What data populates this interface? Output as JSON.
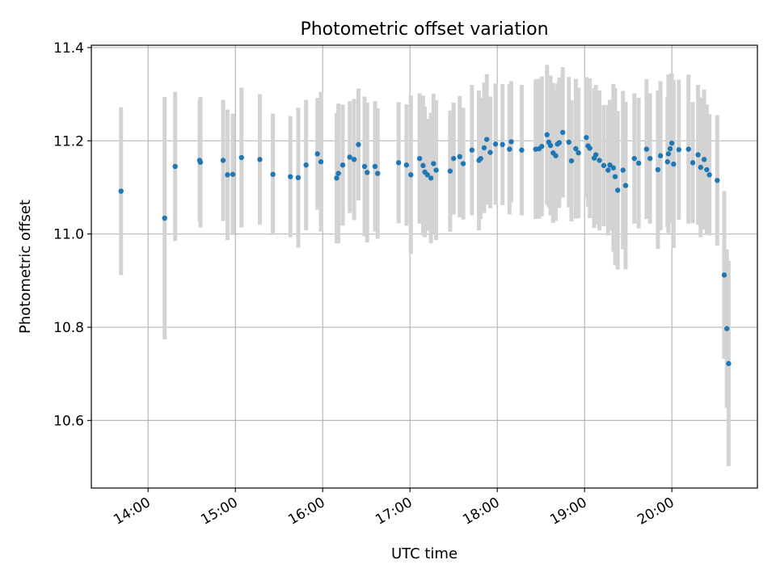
{
  "chart_data": {
    "type": "scatter",
    "title": "Photometric offset variation",
    "xlabel": "UTC time",
    "ylabel": "Photometric offset",
    "xlim": [
      13.35,
      20.98
    ],
    "ylim": [
      10.455,
      11.405
    ],
    "grid": true,
    "x_unit": "hours (UTC)",
    "xticks": [
      {
        "value": 14,
        "label": "14:00"
      },
      {
        "value": 15,
        "label": "15:00"
      },
      {
        "value": 16,
        "label": "16:00"
      },
      {
        "value": 17,
        "label": "17:00"
      },
      {
        "value": 18,
        "label": "18:00"
      },
      {
        "value": 19,
        "label": "19:00"
      },
      {
        "value": 20,
        "label": "20:00"
      }
    ],
    "yticks": [
      {
        "value": 10.6,
        "label": "10.6"
      },
      {
        "value": 10.8,
        "label": "10.8"
      },
      {
        "value": 11.0,
        "label": "11.0"
      },
      {
        "value": 11.2,
        "label": "11.2"
      },
      {
        "value": 11.4,
        "label": "11.4"
      }
    ],
    "colors": {
      "point": "#1f77b4",
      "errorbar": "#d3d3d3",
      "grid": "#b0b0b0",
      "axis": "#000000"
    },
    "series": [
      {
        "name": "Photometric offset",
        "x": [
          13.69,
          14.19,
          14.31,
          14.59,
          14.6,
          14.86,
          14.91,
          14.97,
          15.07,
          15.28,
          15.43,
          15.63,
          15.72,
          15.81,
          15.94,
          15.98,
          16.16,
          16.18,
          16.23,
          16.31,
          16.36,
          16.41,
          16.48,
          16.51,
          16.6,
          16.63,
          16.87,
          16.96,
          17.01,
          17.11,
          17.15,
          17.17,
          17.2,
          17.24,
          17.27,
          17.3,
          17.46,
          17.5,
          17.57,
          17.61,
          17.71,
          17.79,
          17.81,
          17.85,
          17.88,
          17.92,
          17.98,
          18.06,
          18.14,
          18.16,
          18.28,
          18.44,
          18.48,
          18.51,
          18.57,
          18.59,
          18.61,
          18.64,
          18.67,
          18.69,
          18.71,
          18.75,
          18.82,
          18.85,
          18.9,
          18.93,
          19.02,
          19.04,
          19.06,
          19.11,
          19.13,
          19.17,
          19.22,
          19.27,
          19.29,
          19.33,
          19.35,
          19.38,
          19.44,
          19.47,
          19.57,
          19.62,
          19.71,
          19.75,
          19.84,
          19.87,
          19.95,
          19.96,
          19.98,
          20.0,
          20.02,
          20.08,
          20.19,
          20.24,
          20.3,
          20.33,
          20.37,
          20.4,
          20.43,
          20.52,
          20.6,
          20.63,
          20.65
        ],
        "y": [
          11.092,
          11.034,
          11.145,
          11.158,
          11.154,
          11.158,
          11.127,
          11.128,
          11.164,
          11.16,
          11.128,
          11.123,
          11.121,
          11.148,
          11.172,
          11.155,
          11.12,
          11.13,
          11.148,
          11.165,
          11.16,
          11.192,
          11.145,
          11.132,
          11.145,
          11.13,
          11.153,
          11.148,
          11.127,
          11.162,
          11.147,
          11.133,
          11.127,
          11.12,
          11.151,
          11.137,
          11.135,
          11.162,
          11.166,
          11.151,
          11.18,
          11.158,
          11.162,
          11.185,
          11.203,
          11.175,
          11.193,
          11.192,
          11.182,
          11.198,
          11.18,
          11.182,
          11.183,
          11.188,
          11.213,
          11.197,
          11.19,
          11.174,
          11.168,
          11.193,
          11.196,
          11.218,
          11.197,
          11.157,
          11.183,
          11.174,
          11.207,
          11.189,
          11.184,
          11.163,
          11.17,
          11.158,
          11.147,
          11.137,
          11.148,
          11.142,
          11.123,
          11.094,
          11.137,
          11.104,
          11.162,
          11.152,
          11.182,
          11.162,
          11.138,
          11.168,
          11.155,
          11.172,
          11.183,
          11.195,
          11.15,
          11.181,
          11.182,
          11.153,
          11.17,
          11.143,
          11.16,
          11.138,
          11.127,
          11.115,
          10.912,
          10.797,
          10.722
        ],
        "err": [
          0.18,
          0.26,
          0.16,
          0.13,
          0.14,
          0.13,
          0.14,
          0.13,
          0.15,
          0.14,
          0.13,
          0.13,
          0.15,
          0.14,
          0.12,
          0.15,
          0.14,
          0.15,
          0.13,
          0.12,
          0.13,
          0.12,
          0.15,
          0.15,
          0.14,
          0.14,
          0.13,
          0.13,
          0.17,
          0.14,
          0.15,
          0.14,
          0.12,
          0.14,
          0.15,
          0.15,
          0.13,
          0.12,
          0.13,
          0.12,
          0.14,
          0.15,
          0.13,
          0.14,
          0.14,
          0.12,
          0.13,
          0.13,
          0.14,
          0.13,
          0.14,
          0.15,
          0.15,
          0.15,
          0.15,
          0.14,
          0.15,
          0.15,
          0.14,
          0.13,
          0.14,
          0.14,
          0.14,
          0.13,
          0.15,
          0.14,
          0.13,
          0.13,
          0.15,
          0.15,
          0.15,
          0.15,
          0.13,
          0.14,
          0.14,
          0.18,
          0.19,
          0.17,
          0.17,
          0.18,
          0.14,
          0.14,
          0.15,
          0.14,
          0.17,
          0.16,
          0.14,
          0.17,
          0.16,
          0.15,
          0.18,
          0.15,
          0.16,
          0.13,
          0.15,
          0.15,
          0.15,
          0.14,
          0.13,
          0.14,
          0.18,
          0.17,
          0.22
        ]
      }
    ]
  }
}
